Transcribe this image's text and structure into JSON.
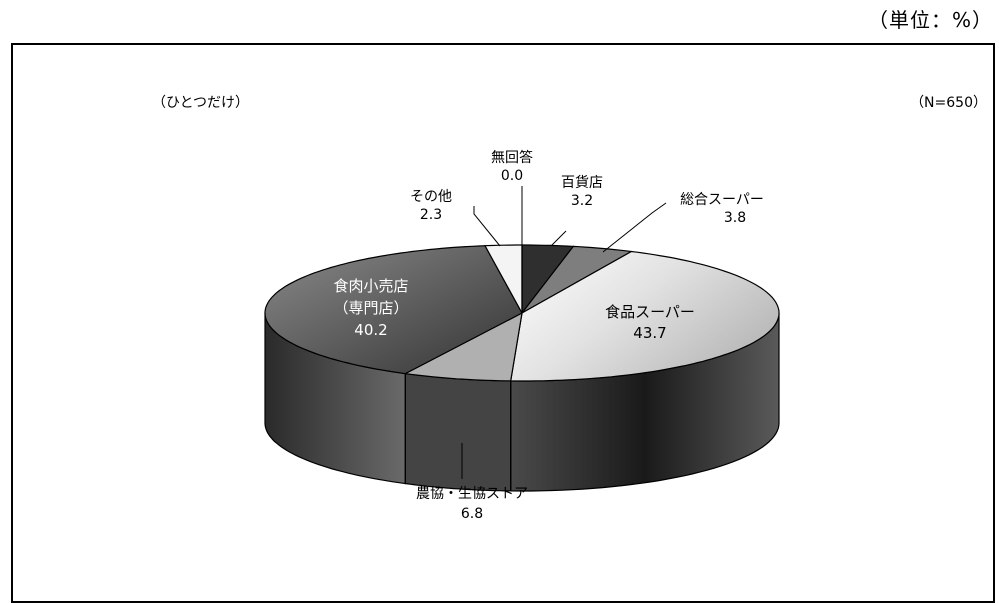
{
  "unit_label": "（単位：%）",
  "instruction": "（ひとつだけ）",
  "sample_size": "（N=650）",
  "chart_data": {
    "type": "pie",
    "title": "",
    "three_d": true,
    "slices": [
      {
        "label": "百貨店",
        "value": 3.2,
        "color": "#3a3a3a"
      },
      {
        "label": "総合スーパー",
        "value": 3.8,
        "color": "#7a7a7a"
      },
      {
        "label": "食品スーパー",
        "value": 43.7,
        "color": "#e6e6e6"
      },
      {
        "label": "農協・生協ストア",
        "value": 6.8,
        "color": "#a8a8a8"
      },
      {
        "label": "食肉小売店",
        "sublabel": "（専門店）",
        "value": 40.2,
        "color": "#5a5a5a"
      },
      {
        "label": "その他",
        "value": 2.3,
        "color": "#f2f2f2"
      },
      {
        "label": "無回答",
        "value": 0.0,
        "color": "#ffffff"
      }
    ],
    "value_labels": [
      "3.2",
      "3.8",
      "43.7",
      "6.8",
      "40.2",
      "2.3",
      "0.0"
    ]
  }
}
